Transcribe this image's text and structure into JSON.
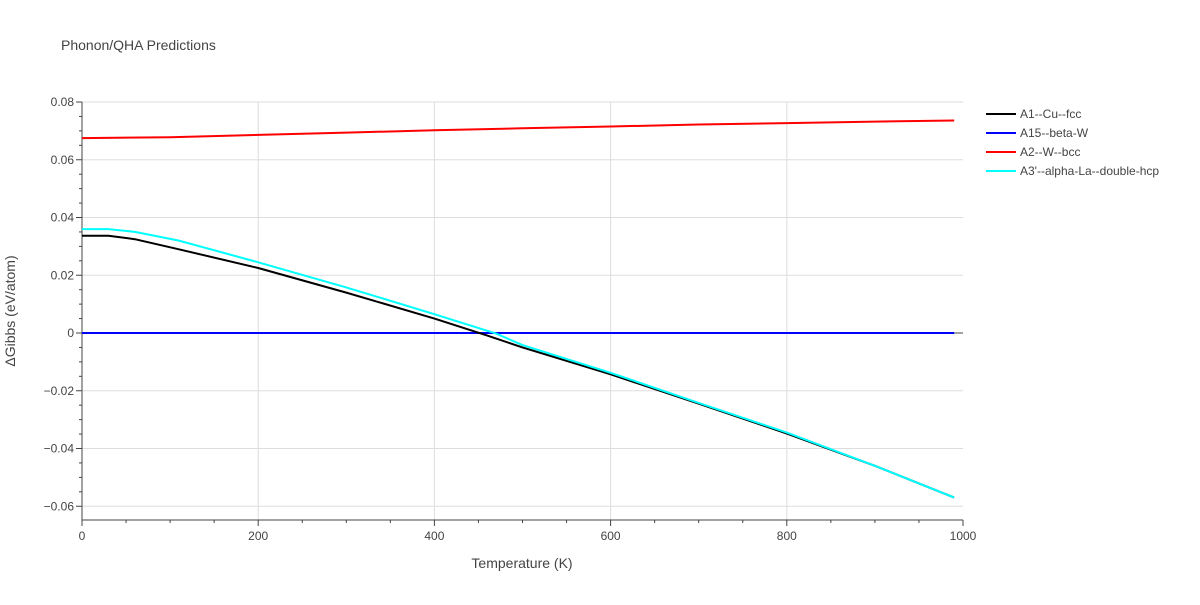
{
  "chart_data": {
    "type": "line",
    "title": "Phonon/QHA Predictions",
    "xlabel": "Temperature (K)",
    "ylabel": "ΔGibbs (eV/atom)",
    "xlim": [
      0,
      1000
    ],
    "ylim": [
      -0.065,
      0.08
    ],
    "xticks": [
      0,
      200,
      400,
      600,
      800,
      1000
    ],
    "yticks": [
      -0.06,
      -0.04,
      -0.02,
      0,
      0.02,
      0.04,
      0.06,
      0.08
    ],
    "xtick_labels": [
      "0",
      "200",
      "400",
      "600",
      "800",
      "1000"
    ],
    "ytick_labels": [
      "−0.06",
      "−0.04",
      "−0.02",
      "0",
      "0.02",
      "0.04",
      "0.06",
      "0.08"
    ],
    "grid": true,
    "legend_position": "right",
    "series": [
      {
        "name": "A1--Cu--fcc",
        "color": "#000000",
        "x": [
          0,
          30,
          60,
          110,
          200,
          300,
          400,
          460,
          500,
          600,
          700,
          800,
          900,
          990
        ],
        "y": [
          0.0337,
          0.0337,
          0.0325,
          0.029,
          0.0225,
          0.014,
          0.005,
          -0.0009,
          -0.005,
          -0.0143,
          -0.0245,
          -0.0348,
          -0.046,
          -0.057
        ]
      },
      {
        "name": "A15--beta-W",
        "color": "#0000ff",
        "x": [
          0,
          990
        ],
        "y": [
          0,
          0
        ]
      },
      {
        "name": "A2--W--bcc",
        "color": "#ff0000",
        "x": [
          0,
          100,
          200,
          300,
          400,
          500,
          600,
          700,
          800,
          900,
          990
        ],
        "y": [
          0.0675,
          0.0678,
          0.0686,
          0.0694,
          0.0702,
          0.0709,
          0.0715,
          0.0722,
          0.0727,
          0.0732,
          0.0736
        ]
      },
      {
        "name": "A3'--alpha-La--double-hcp",
        "color": "#00ffff",
        "x": [
          0,
          30,
          60,
          110,
          200,
          300,
          400,
          470,
          500,
          600,
          700,
          800,
          900,
          990
        ],
        "y": [
          0.036,
          0.036,
          0.035,
          0.032,
          0.0245,
          0.0158,
          0.0065,
          -0.0002,
          -0.0042,
          -0.0138,
          -0.0242,
          -0.0345,
          -0.046,
          -0.057
        ]
      }
    ]
  }
}
